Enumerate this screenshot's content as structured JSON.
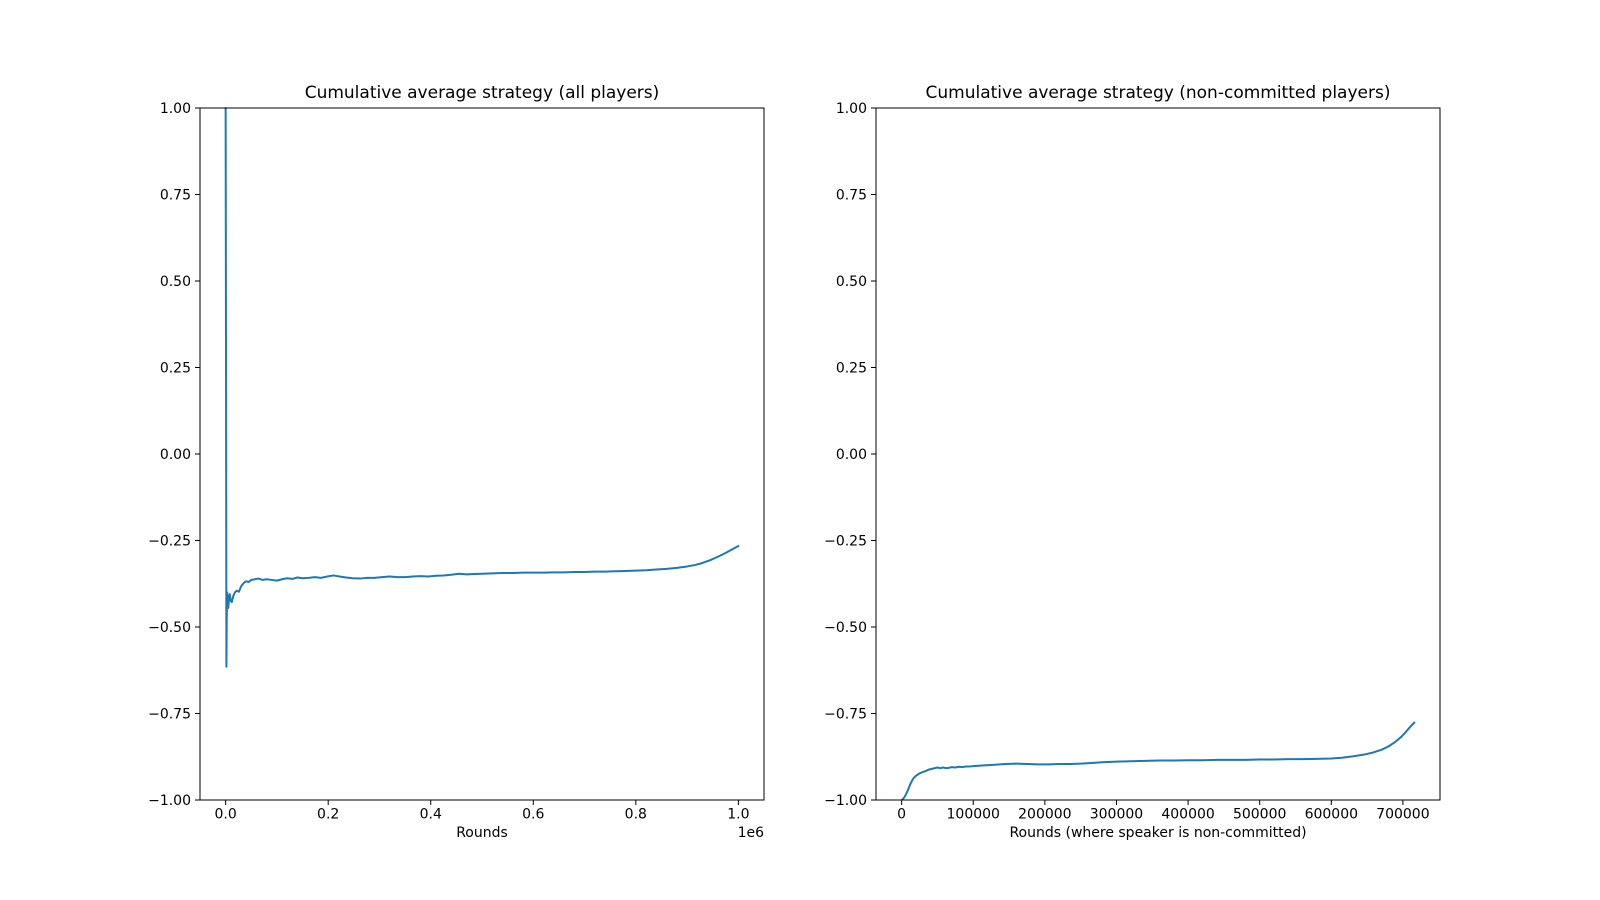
{
  "figure": {
    "background_color": "#ffffff",
    "text_color": "#000000",
    "line_color": "#1f77b4"
  },
  "chart_data": [
    {
      "type": "line",
      "title": "Cumulative average strategy (all players)",
      "xlabel": "Rounds",
      "ylabel": "",
      "x_offset_label": "1e6",
      "xlim": [
        -50000,
        1050000
      ],
      "ylim": [
        -1.0,
        1.0
      ],
      "grid": false,
      "legend": null,
      "line_color": "#1f77b4",
      "x_ticks": {
        "values": [
          0,
          200000,
          400000,
          600000,
          800000,
          1000000
        ],
        "labels": [
          "0.0",
          "0.2",
          "0.4",
          "0.6",
          "0.8",
          "1.0"
        ]
      },
      "y_ticks": {
        "values": [
          1.0,
          0.75,
          0.5,
          0.25,
          0.0,
          -0.25,
          -0.5,
          -0.75,
          -1.0
        ],
        "labels": [
          "1.00",
          "0.75",
          "0.50",
          "0.25",
          "0.00",
          "−0.25",
          "−0.50",
          "−0.75",
          "−1.00"
        ]
      },
      "series": [
        {
          "name": "cumulative-average-strategy-all-players",
          "points": [
            [
              0,
              1.0
            ],
            [
              800,
              0.2
            ],
            [
              1500,
              -0.615
            ],
            [
              2200,
              -0.47
            ],
            [
              3000,
              -0.4
            ],
            [
              4200,
              -0.425
            ],
            [
              5200,
              -0.445
            ],
            [
              6500,
              -0.415
            ],
            [
              8000,
              -0.405
            ],
            [
              10000,
              -0.425
            ],
            [
              12000,
              -0.428
            ],
            [
              15000,
              -0.41
            ],
            [
              18000,
              -0.4
            ],
            [
              22000,
              -0.395
            ],
            [
              26000,
              -0.398
            ],
            [
              30000,
              -0.383
            ],
            [
              35000,
              -0.373
            ],
            [
              40000,
              -0.368
            ],
            [
              45000,
              -0.37
            ],
            [
              50000,
              -0.364
            ],
            [
              57000,
              -0.362
            ],
            [
              64000,
              -0.36
            ],
            [
              72000,
              -0.364
            ],
            [
              80000,
              -0.362
            ],
            [
              90000,
              -0.364
            ],
            [
              100000,
              -0.366
            ],
            [
              110000,
              -0.362
            ],
            [
              120000,
              -0.359
            ],
            [
              130000,
              -0.361
            ],
            [
              140000,
              -0.357
            ],
            [
              150000,
              -0.359
            ],
            [
              162000,
              -0.358
            ],
            [
              174000,
              -0.356
            ],
            [
              186000,
              -0.358
            ],
            [
              198000,
              -0.354
            ],
            [
              210000,
              -0.351
            ],
            [
              222000,
              -0.354
            ],
            [
              235000,
              -0.357
            ],
            [
              248000,
              -0.359
            ],
            [
              262000,
              -0.36
            ],
            [
              276000,
              -0.358
            ],
            [
              290000,
              -0.358
            ],
            [
              305000,
              -0.356
            ],
            [
              320000,
              -0.354
            ],
            [
              335000,
              -0.356
            ],
            [
              350000,
              -0.356
            ],
            [
              365000,
              -0.354
            ],
            [
              380000,
              -0.353
            ],
            [
              395000,
              -0.354
            ],
            [
              410000,
              -0.352
            ],
            [
              425000,
              -0.351
            ],
            [
              440000,
              -0.349
            ],
            [
              455000,
              -0.346
            ],
            [
              470000,
              -0.348
            ],
            [
              485000,
              -0.347
            ],
            [
              500000,
              -0.346
            ],
            [
              520000,
              -0.345
            ],
            [
              540000,
              -0.344
            ],
            [
              560000,
              -0.344
            ],
            [
              580000,
              -0.343
            ],
            [
              600000,
              -0.343
            ],
            [
              620000,
              -0.343
            ],
            [
              640000,
              -0.342
            ],
            [
              660000,
              -0.342
            ],
            [
              680000,
              -0.341
            ],
            [
              700000,
              -0.341
            ],
            [
              720000,
              -0.34
            ],
            [
              740000,
              -0.34
            ],
            [
              760000,
              -0.339
            ],
            [
              780000,
              -0.338
            ],
            [
              800000,
              -0.337
            ],
            [
              820000,
              -0.336
            ],
            [
              840000,
              -0.334
            ],
            [
              860000,
              -0.332
            ],
            [
              880000,
              -0.329
            ],
            [
              900000,
              -0.325
            ],
            [
              915000,
              -0.321
            ],
            [
              930000,
              -0.315
            ],
            [
              945000,
              -0.307
            ],
            [
              960000,
              -0.297
            ],
            [
              975000,
              -0.286
            ],
            [
              990000,
              -0.274
            ],
            [
              1000000,
              -0.266
            ]
          ]
        }
      ]
    },
    {
      "type": "line",
      "title": "Cumulative average strategy (non-committed players)",
      "xlabel": "Rounds (where speaker is non-committed)",
      "ylabel": "",
      "x_offset_label": null,
      "xlim": [
        -35800,
        751800
      ],
      "ylim": [
        -1.0,
        1.0
      ],
      "grid": false,
      "legend": null,
      "line_color": "#1f77b4",
      "x_ticks": {
        "values": [
          0,
          100000,
          200000,
          300000,
          400000,
          500000,
          600000,
          700000
        ],
        "labels": [
          "0",
          "100000",
          "200000",
          "300000",
          "400000",
          "500000",
          "600000",
          "700000"
        ]
      },
      "y_ticks": {
        "values": [
          1.0,
          0.75,
          0.5,
          0.25,
          0.0,
          -0.25,
          -0.5,
          -0.75,
          -1.0
        ],
        "labels": [
          "1.00",
          "0.75",
          "0.50",
          "0.25",
          "0.00",
          "−0.25",
          "−0.50",
          "−0.75",
          "−1.00"
        ]
      },
      "series": [
        {
          "name": "cumulative-average-strategy-non-committed-players",
          "points": [
            [
              0,
              -1.0
            ],
            [
              2000,
              -0.997
            ],
            [
              4000,
              -0.991
            ],
            [
              6000,
              -0.984
            ],
            [
              8000,
              -0.975
            ],
            [
              10000,
              -0.965
            ],
            [
              12000,
              -0.955
            ],
            [
              14000,
              -0.946
            ],
            [
              16000,
              -0.939
            ],
            [
              18000,
              -0.934
            ],
            [
              20000,
              -0.93
            ],
            [
              23000,
              -0.926
            ],
            [
              26000,
              -0.922
            ],
            [
              30000,
              -0.919
            ],
            [
              34000,
              -0.916
            ],
            [
              38000,
              -0.912
            ],
            [
              42000,
              -0.91
            ],
            [
              46000,
              -0.908
            ],
            [
              50000,
              -0.906
            ],
            [
              54000,
              -0.908
            ],
            [
              58000,
              -0.906
            ],
            [
              62000,
              -0.908
            ],
            [
              66000,
              -0.907
            ],
            [
              70000,
              -0.905
            ],
            [
              75000,
              -0.906
            ],
            [
              80000,
              -0.904
            ],
            [
              85000,
              -0.905
            ],
            [
              90000,
              -0.903
            ],
            [
              95000,
              -0.903
            ],
            [
              100000,
              -0.902
            ],
            [
              115000,
              -0.9
            ],
            [
              130000,
              -0.898
            ],
            [
              145000,
              -0.896
            ],
            [
              160000,
              -0.895
            ],
            [
              175000,
              -0.896
            ],
            [
              190000,
              -0.897
            ],
            [
              205000,
              -0.897
            ],
            [
              220000,
              -0.896
            ],
            [
              235000,
              -0.896
            ],
            [
              250000,
              -0.895
            ],
            [
              265000,
              -0.893
            ],
            [
              280000,
              -0.891
            ],
            [
              300000,
              -0.889
            ],
            [
              320000,
              -0.888
            ],
            [
              340000,
              -0.887
            ],
            [
              360000,
              -0.886
            ],
            [
              380000,
              -0.886
            ],
            [
              400000,
              -0.885
            ],
            [
              420000,
              -0.885
            ],
            [
              440000,
              -0.884
            ],
            [
              460000,
              -0.884
            ],
            [
              480000,
              -0.884
            ],
            [
              500000,
              -0.883
            ],
            [
              520000,
              -0.883
            ],
            [
              540000,
              -0.882
            ],
            [
              560000,
              -0.882
            ],
            [
              580000,
              -0.881
            ],
            [
              600000,
              -0.88
            ],
            [
              615000,
              -0.878
            ],
            [
              630000,
              -0.874
            ],
            [
              645000,
              -0.869
            ],
            [
              658000,
              -0.863
            ],
            [
              670000,
              -0.855
            ],
            [
              680000,
              -0.845
            ],
            [
              690000,
              -0.831
            ],
            [
              698000,
              -0.817
            ],
            [
              705000,
              -0.801
            ],
            [
              710000,
              -0.789
            ],
            [
              716000,
              -0.776
            ]
          ]
        }
      ]
    }
  ]
}
